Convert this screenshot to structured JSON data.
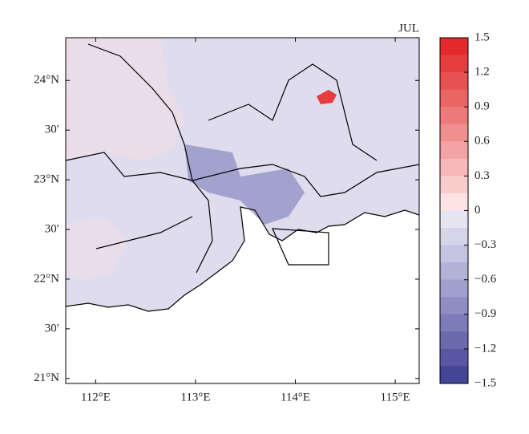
{
  "map": {
    "title": "JUL",
    "lonlim": [
      111.7,
      115.24
    ],
    "latlim": [
      20.95,
      24.43
    ],
    "lon_ticks": [
      {
        "value": 112,
        "label": "112°E"
      },
      {
        "value": 113,
        "label": "113°E"
      },
      {
        "value": 114,
        "label": "114°E"
      },
      {
        "value": 115,
        "label": "115°E"
      }
    ],
    "lat_ticks": [
      {
        "value": 24,
        "label": "24°N"
      },
      {
        "value": 23.5,
        "label": "30′"
      },
      {
        "value": 23,
        "label": "23°N"
      },
      {
        "value": 22.5,
        "label": "30′"
      },
      {
        "value": 22,
        "label": "22°N"
      },
      {
        "value": 21.5,
        "label": "30′"
      },
      {
        "value": 21,
        "label": "21°N"
      }
    ],
    "colorbar": {
      "lim": [
        -1.5,
        1.5
      ],
      "ticks": [
        1.5,
        1.2,
        0.9,
        0.6,
        0.3,
        0,
        {
          "value": -0.3,
          "label": "−0.3"
        },
        {
          "value": -0.6,
          "label": "−0.6"
        },
        {
          "value": -0.9,
          "label": "−0.9"
        },
        {
          "value": -1.2,
          "label": "−1.2"
        },
        {
          "value": -1.5,
          "label": "−1.5"
        }
      ],
      "colors": [
        "#e22a2c",
        "#e53d3e",
        "#e85152",
        "#eb6566",
        "#ee797a",
        "#f18e8f",
        "#f4a3a4",
        "#f7b8b9",
        "#facdcd",
        "#fde3e3",
        "#e6e5f1",
        "#d5d4e9",
        "#c4c3e0",
        "#b2b1d6",
        "#a1a0cd",
        "#8f8ec3",
        "#7d7cb9",
        "#6b6aae",
        "#5957a3",
        "#454597"
      ]
    }
  }
}
